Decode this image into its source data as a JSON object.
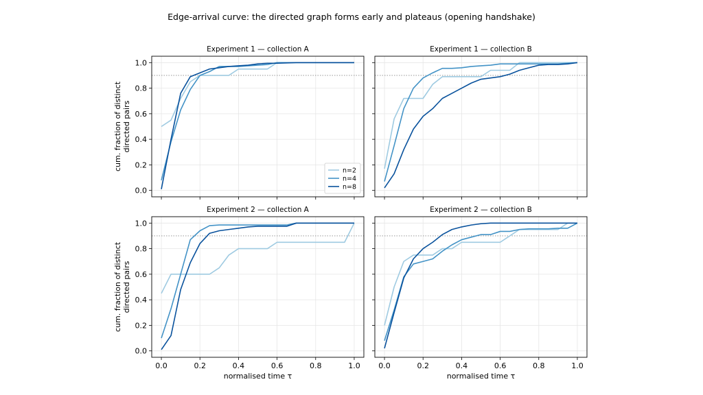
{
  "suptitle": "Edge-arrival curve: the directed graph forms early and plateaus (opening handshake)",
  "legend_labels": [
    "n=2",
    "n=4",
    "n=8"
  ],
  "colors": {
    "n2": "#9ecae1",
    "n4": "#4292c6",
    "n8": "#08519c",
    "threshold": "#888888",
    "grid": "#e6e6e6"
  },
  "chart_data": [
    {
      "type": "line",
      "title": "Experiment 1 — collection A",
      "xlabel": "",
      "ylabel": "cum. fraction of distinct\ndirected pairs",
      "xlim": [
        -0.05,
        1.05
      ],
      "ylim": [
        -0.05,
        1.05
      ],
      "xticks": [
        "0.0",
        "0.2",
        "0.4",
        "0.6",
        "0.8",
        "1.0"
      ],
      "yticks": [
        "0.0",
        "0.2",
        "0.4",
        "0.6",
        "0.8",
        "1.0"
      ],
      "threshold": 0.9,
      "legend": "lower-right",
      "series": [
        {
          "name": "n=2",
          "points": [
            [
              0,
              0.5
            ],
            [
              0.05,
              0.55
            ],
            [
              0.1,
              0.72
            ],
            [
              0.15,
              0.85
            ],
            [
              0.2,
              0.9
            ],
            [
              0.25,
              0.9
            ],
            [
              0.3,
              0.9
            ],
            [
              0.35,
              0.9
            ],
            [
              0.4,
              0.95
            ],
            [
              0.45,
              0.95
            ],
            [
              0.5,
              0.95
            ],
            [
              0.55,
              0.95
            ],
            [
              0.6,
              1.0
            ],
            [
              0.7,
              1.0
            ],
            [
              1.0,
              1.0
            ]
          ]
        },
        {
          "name": "n=4",
          "points": [
            [
              0,
              0.08
            ],
            [
              0.05,
              0.38
            ],
            [
              0.1,
              0.63
            ],
            [
              0.15,
              0.79
            ],
            [
              0.2,
              0.9
            ],
            [
              0.25,
              0.93
            ],
            [
              0.3,
              0.97
            ],
            [
              0.35,
              0.97
            ],
            [
              0.4,
              0.97
            ],
            [
              0.45,
              0.975
            ],
            [
              0.5,
              0.98
            ],
            [
              0.55,
              0.985
            ],
            [
              0.6,
              1.0
            ],
            [
              1.0,
              1.0
            ]
          ]
        },
        {
          "name": "n=8",
          "points": [
            [
              0,
              0.01
            ],
            [
              0.05,
              0.4
            ],
            [
              0.1,
              0.76
            ],
            [
              0.15,
              0.89
            ],
            [
              0.2,
              0.92
            ],
            [
              0.25,
              0.95
            ],
            [
              0.3,
              0.96
            ],
            [
              0.35,
              0.97
            ],
            [
              0.4,
              0.975
            ],
            [
              0.45,
              0.98
            ],
            [
              0.5,
              0.99
            ],
            [
              0.55,
              0.995
            ],
            [
              0.6,
              0.995
            ],
            [
              0.7,
              1.0
            ],
            [
              1.0,
              1.0
            ]
          ]
        }
      ]
    },
    {
      "type": "line",
      "title": "Experiment 1 — collection B",
      "xlabel": "",
      "ylabel": "",
      "xlim": [
        -0.05,
        1.05
      ],
      "ylim": [
        -0.05,
        1.05
      ],
      "xticks": [
        "0.0",
        "0.2",
        "0.4",
        "0.6",
        "0.8",
        "1.0"
      ],
      "yticks": [
        "0.0",
        "0.2",
        "0.4",
        "0.6",
        "0.8",
        "1.0"
      ],
      "threshold": 0.9,
      "series": [
        {
          "name": "n=2",
          "points": [
            [
              0,
              0.17
            ],
            [
              0.05,
              0.56
            ],
            [
              0.1,
              0.72
            ],
            [
              0.15,
              0.72
            ],
            [
              0.2,
              0.72
            ],
            [
              0.25,
              0.83
            ],
            [
              0.3,
              0.89
            ],
            [
              0.35,
              0.89
            ],
            [
              0.4,
              0.89
            ],
            [
              0.45,
              0.89
            ],
            [
              0.5,
              0.89
            ],
            [
              0.55,
              0.94
            ],
            [
              0.6,
              0.94
            ],
            [
              0.65,
              0.94
            ],
            [
              0.7,
              1.0
            ],
            [
              0.75,
              1.0
            ],
            [
              1.0,
              1.0
            ]
          ]
        },
        {
          "name": "n=4",
          "points": [
            [
              0,
              0.07
            ],
            [
              0.05,
              0.35
            ],
            [
              0.1,
              0.64
            ],
            [
              0.15,
              0.8
            ],
            [
              0.2,
              0.88
            ],
            [
              0.25,
              0.92
            ],
            [
              0.3,
              0.955
            ],
            [
              0.35,
              0.955
            ],
            [
              0.4,
              0.96
            ],
            [
              0.45,
              0.97
            ],
            [
              0.5,
              0.975
            ],
            [
              0.55,
              0.98
            ],
            [
              0.6,
              0.99
            ],
            [
              0.65,
              0.99
            ],
            [
              0.7,
              0.99
            ],
            [
              0.8,
              0.99
            ],
            [
              0.9,
              0.99
            ],
            [
              1.0,
              1.0
            ]
          ]
        },
        {
          "name": "n=8",
          "points": [
            [
              0,
              0.02
            ],
            [
              0.05,
              0.13
            ],
            [
              0.1,
              0.32
            ],
            [
              0.15,
              0.48
            ],
            [
              0.2,
              0.58
            ],
            [
              0.25,
              0.64
            ],
            [
              0.3,
              0.72
            ],
            [
              0.35,
              0.76
            ],
            [
              0.4,
              0.8
            ],
            [
              0.45,
              0.84
            ],
            [
              0.5,
              0.87
            ],
            [
              0.55,
              0.88
            ],
            [
              0.6,
              0.89
            ],
            [
              0.65,
              0.91
            ],
            [
              0.7,
              0.94
            ],
            [
              0.75,
              0.96
            ],
            [
              0.8,
              0.98
            ],
            [
              0.85,
              0.985
            ],
            [
              0.9,
              0.985
            ],
            [
              0.95,
              0.99
            ],
            [
              1.0,
              1.0
            ]
          ]
        }
      ]
    },
    {
      "type": "line",
      "title": "Experiment 2 — collection A",
      "xlabel": "normalised time τ",
      "ylabel": "cum. fraction of distinct\ndirected pairs",
      "xlim": [
        -0.05,
        1.05
      ],
      "ylim": [
        -0.05,
        1.05
      ],
      "xticks": [
        "0.0",
        "0.2",
        "0.4",
        "0.6",
        "0.8",
        "1.0"
      ],
      "yticks": [
        "0.0",
        "0.2",
        "0.4",
        "0.6",
        "0.8",
        "1.0"
      ],
      "threshold": 0.9,
      "series": [
        {
          "name": "n=2",
          "points": [
            [
              0,
              0.45
            ],
            [
              0.05,
              0.6
            ],
            [
              0.1,
              0.6
            ],
            [
              0.15,
              0.6
            ],
            [
              0.2,
              0.6
            ],
            [
              0.25,
              0.6
            ],
            [
              0.3,
              0.65
            ],
            [
              0.35,
              0.75
            ],
            [
              0.4,
              0.8
            ],
            [
              0.45,
              0.8
            ],
            [
              0.5,
              0.8
            ],
            [
              0.55,
              0.8
            ],
            [
              0.6,
              0.85
            ],
            [
              0.65,
              0.85
            ],
            [
              0.7,
              0.85
            ],
            [
              0.95,
              0.85
            ],
            [
              1.0,
              1.0
            ]
          ]
        },
        {
          "name": "n=4",
          "points": [
            [
              0,
              0.1
            ],
            [
              0.05,
              0.33
            ],
            [
              0.1,
              0.6
            ],
            [
              0.15,
              0.87
            ],
            [
              0.2,
              0.94
            ],
            [
              0.25,
              0.98
            ],
            [
              0.3,
              0.985
            ],
            [
              0.35,
              0.985
            ],
            [
              0.4,
              0.985
            ],
            [
              0.45,
              0.985
            ],
            [
              0.5,
              0.985
            ],
            [
              0.55,
              0.985
            ],
            [
              0.6,
              0.985
            ],
            [
              0.65,
              0.985
            ],
            [
              0.7,
              1.0
            ],
            [
              1.0,
              1.0
            ]
          ]
        },
        {
          "name": "n=8",
          "points": [
            [
              0,
              0.01
            ],
            [
              0.05,
              0.12
            ],
            [
              0.1,
              0.48
            ],
            [
              0.15,
              0.69
            ],
            [
              0.2,
              0.84
            ],
            [
              0.25,
              0.92
            ],
            [
              0.3,
              0.94
            ],
            [
              0.35,
              0.95
            ],
            [
              0.4,
              0.96
            ],
            [
              0.45,
              0.97
            ],
            [
              0.5,
              0.975
            ],
            [
              0.55,
              0.975
            ],
            [
              0.6,
              0.975
            ],
            [
              0.65,
              0.975
            ],
            [
              0.7,
              1.0
            ],
            [
              1.0,
              1.0
            ]
          ]
        }
      ]
    },
    {
      "type": "line",
      "title": "Experiment 2 — collection B",
      "xlabel": "normalised time τ",
      "ylabel": "",
      "xlim": [
        -0.05,
        1.05
      ],
      "ylim": [
        -0.05,
        1.05
      ],
      "xticks": [
        "0.0",
        "0.2",
        "0.4",
        "0.6",
        "0.8",
        "1.0"
      ],
      "yticks": [
        "0.0",
        "0.2",
        "0.4",
        "0.6",
        "0.8",
        "1.0"
      ],
      "threshold": 0.9,
      "series": [
        {
          "name": "n=2",
          "points": [
            [
              0,
              0.2
            ],
            [
              0.05,
              0.5
            ],
            [
              0.1,
              0.7
            ],
            [
              0.15,
              0.75
            ],
            [
              0.2,
              0.75
            ],
            [
              0.25,
              0.75
            ],
            [
              0.3,
              0.8
            ],
            [
              0.35,
              0.8
            ],
            [
              0.4,
              0.85
            ],
            [
              0.45,
              0.85
            ],
            [
              0.5,
              0.85
            ],
            [
              0.55,
              0.85
            ],
            [
              0.6,
              0.85
            ],
            [
              0.65,
              0.9
            ],
            [
              0.7,
              0.95
            ],
            [
              0.75,
              0.95
            ],
            [
              0.8,
              0.95
            ],
            [
              0.9,
              0.95
            ],
            [
              0.95,
              1.0
            ],
            [
              1.0,
              1.0
            ]
          ]
        },
        {
          "name": "n=4",
          "points": [
            [
              0,
              0.08
            ],
            [
              0.05,
              0.32
            ],
            [
              0.1,
              0.58
            ],
            [
              0.15,
              0.68
            ],
            [
              0.2,
              0.7
            ],
            [
              0.25,
              0.72
            ],
            [
              0.3,
              0.78
            ],
            [
              0.35,
              0.83
            ],
            [
              0.4,
              0.87
            ],
            [
              0.45,
              0.89
            ],
            [
              0.5,
              0.91
            ],
            [
              0.55,
              0.91
            ],
            [
              0.6,
              0.935
            ],
            [
              0.65,
              0.935
            ],
            [
              0.7,
              0.95
            ],
            [
              0.75,
              0.955
            ],
            [
              0.8,
              0.955
            ],
            [
              0.85,
              0.955
            ],
            [
              0.9,
              0.96
            ],
            [
              0.95,
              0.96
            ],
            [
              1.0,
              1.0
            ]
          ]
        },
        {
          "name": "n=8",
          "points": [
            [
              0,
              0.02
            ],
            [
              0.05,
              0.3
            ],
            [
              0.1,
              0.57
            ],
            [
              0.15,
              0.72
            ],
            [
              0.2,
              0.8
            ],
            [
              0.25,
              0.85
            ],
            [
              0.3,
              0.91
            ],
            [
              0.35,
              0.95
            ],
            [
              0.4,
              0.97
            ],
            [
              0.45,
              0.985
            ],
            [
              0.5,
              0.995
            ],
            [
              0.55,
              1.0
            ],
            [
              0.6,
              1.0
            ],
            [
              1.0,
              1.0
            ]
          ]
        }
      ]
    }
  ]
}
